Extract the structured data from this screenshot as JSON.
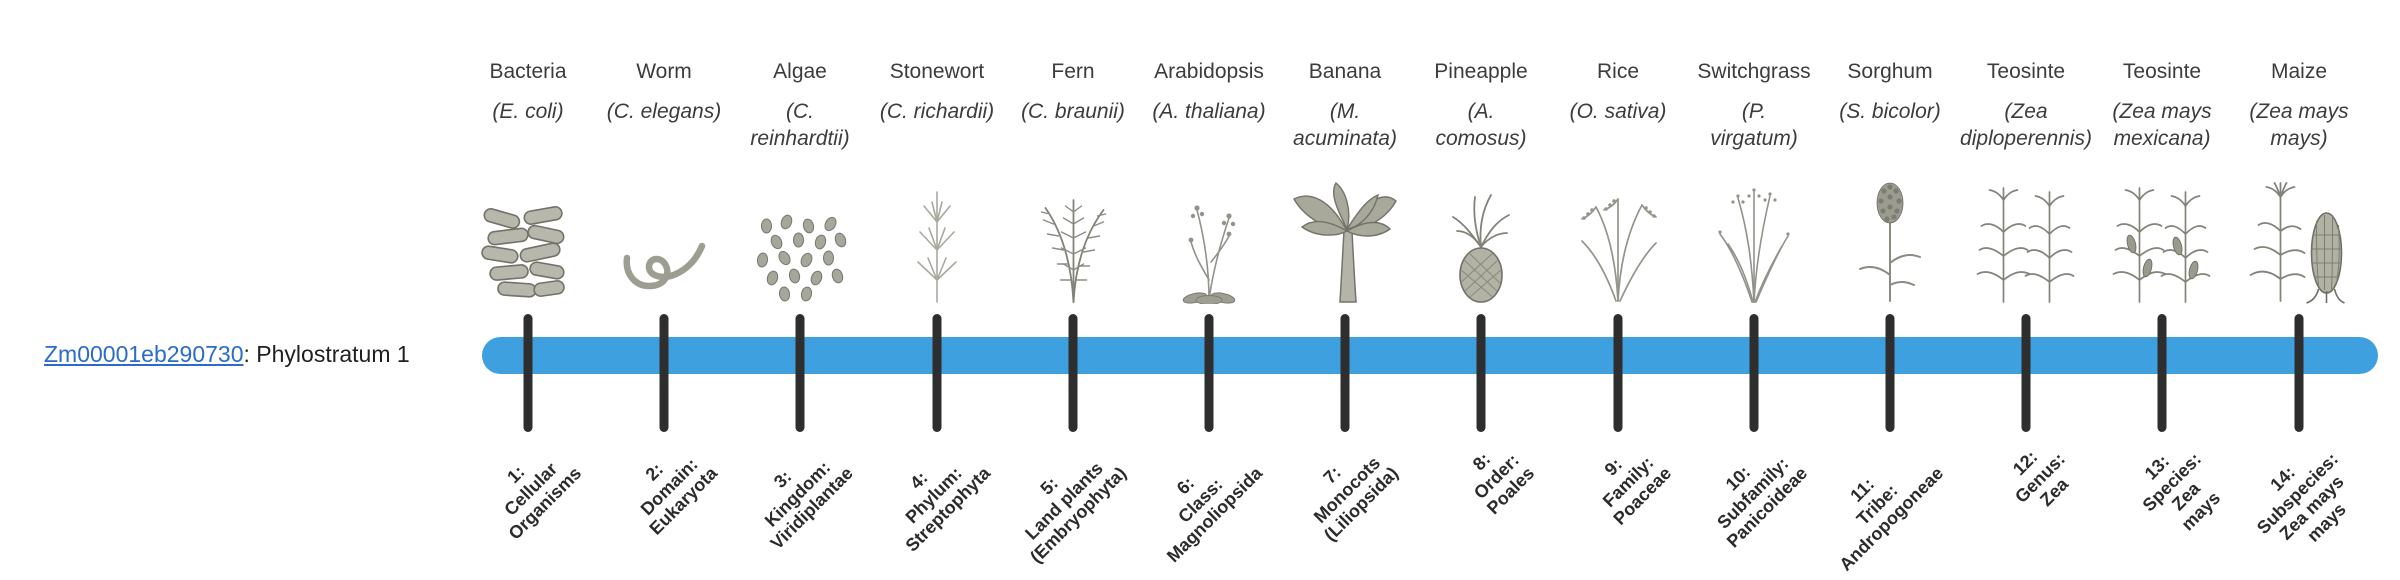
{
  "gene": {
    "id": "Zm00001eb290730",
    "suffix": ": Phylostratum 1"
  },
  "timeline": {
    "bar_color": "#3FA0E0",
    "tick_color": "#2E2E2E",
    "link_color": "#2A6BCB"
  },
  "strata": [
    {
      "common_name": "Bacteria",
      "scientific_name": "(E. coli)",
      "icon": "bacteria-icon",
      "rank_label": "1:\nCellular\nOrganisms"
    },
    {
      "common_name": "Worm",
      "scientific_name": "(C. elegans)",
      "icon": "worm-icon",
      "rank_label": "2:\nDomain:\nEukaryota"
    },
    {
      "common_name": "Algae",
      "scientific_name": "(C.\nreinhardtii)",
      "icon": "algae-icon",
      "rank_label": "3:\nKingdom:\nViridiplantae"
    },
    {
      "common_name": "Stonewort",
      "scientific_name": "(C. richardii)",
      "icon": "stonewort-icon",
      "rank_label": "4:\nPhylum:\nStreptophyta"
    },
    {
      "common_name": "Fern",
      "scientific_name": "(C. braunii)",
      "icon": "fern-icon",
      "rank_label": "5:\nLand plants\n(Embryophyta)"
    },
    {
      "common_name": "Arabidopsis",
      "scientific_name": "(A. thaliana)",
      "icon": "arabidopsis-icon",
      "rank_label": "6:\nClass:\nMagnoliopsida"
    },
    {
      "common_name": "Banana",
      "scientific_name": "(M.\nacuminata)",
      "icon": "banana-icon",
      "rank_label": "7:\nMonocots\n(Liliopsida)"
    },
    {
      "common_name": "Pineapple",
      "scientific_name": "(A.\ncomosus)",
      "icon": "pineapple-icon",
      "rank_label": "8:\nOrder:\nPoales"
    },
    {
      "common_name": "Rice",
      "scientific_name": "(O. sativa)",
      "icon": "rice-icon",
      "rank_label": "9:\nFamily:\nPoaceae"
    },
    {
      "common_name": "Switchgrass",
      "scientific_name": "(P.\nvirgatum)",
      "icon": "switchgrass-icon",
      "rank_label": "10:\nSubfamily:\nPanicoideae"
    },
    {
      "common_name": "Sorghum",
      "scientific_name": "(S. bicolor)",
      "icon": "sorghum-icon",
      "rank_label": "11:\nTribe:\nAndropogoneae"
    },
    {
      "common_name": "Teosinte",
      "scientific_name": "(Zea\ndiploperennis)",
      "icon": "teosinte-diploperennis-icon",
      "rank_label": "12:\nGenus:\nZea"
    },
    {
      "common_name": "Teosinte",
      "scientific_name": "(Zea mays\nmexicana)",
      "icon": "teosinte-mexicana-icon",
      "rank_label": "13:\nSpecies:\nZea\nmays"
    },
    {
      "common_name": "Maize",
      "scientific_name": "(Zea mays\nmays)",
      "icon": "maize-icon",
      "rank_label": "14:\nSubspecies:\nZea mays\nmays"
    }
  ]
}
